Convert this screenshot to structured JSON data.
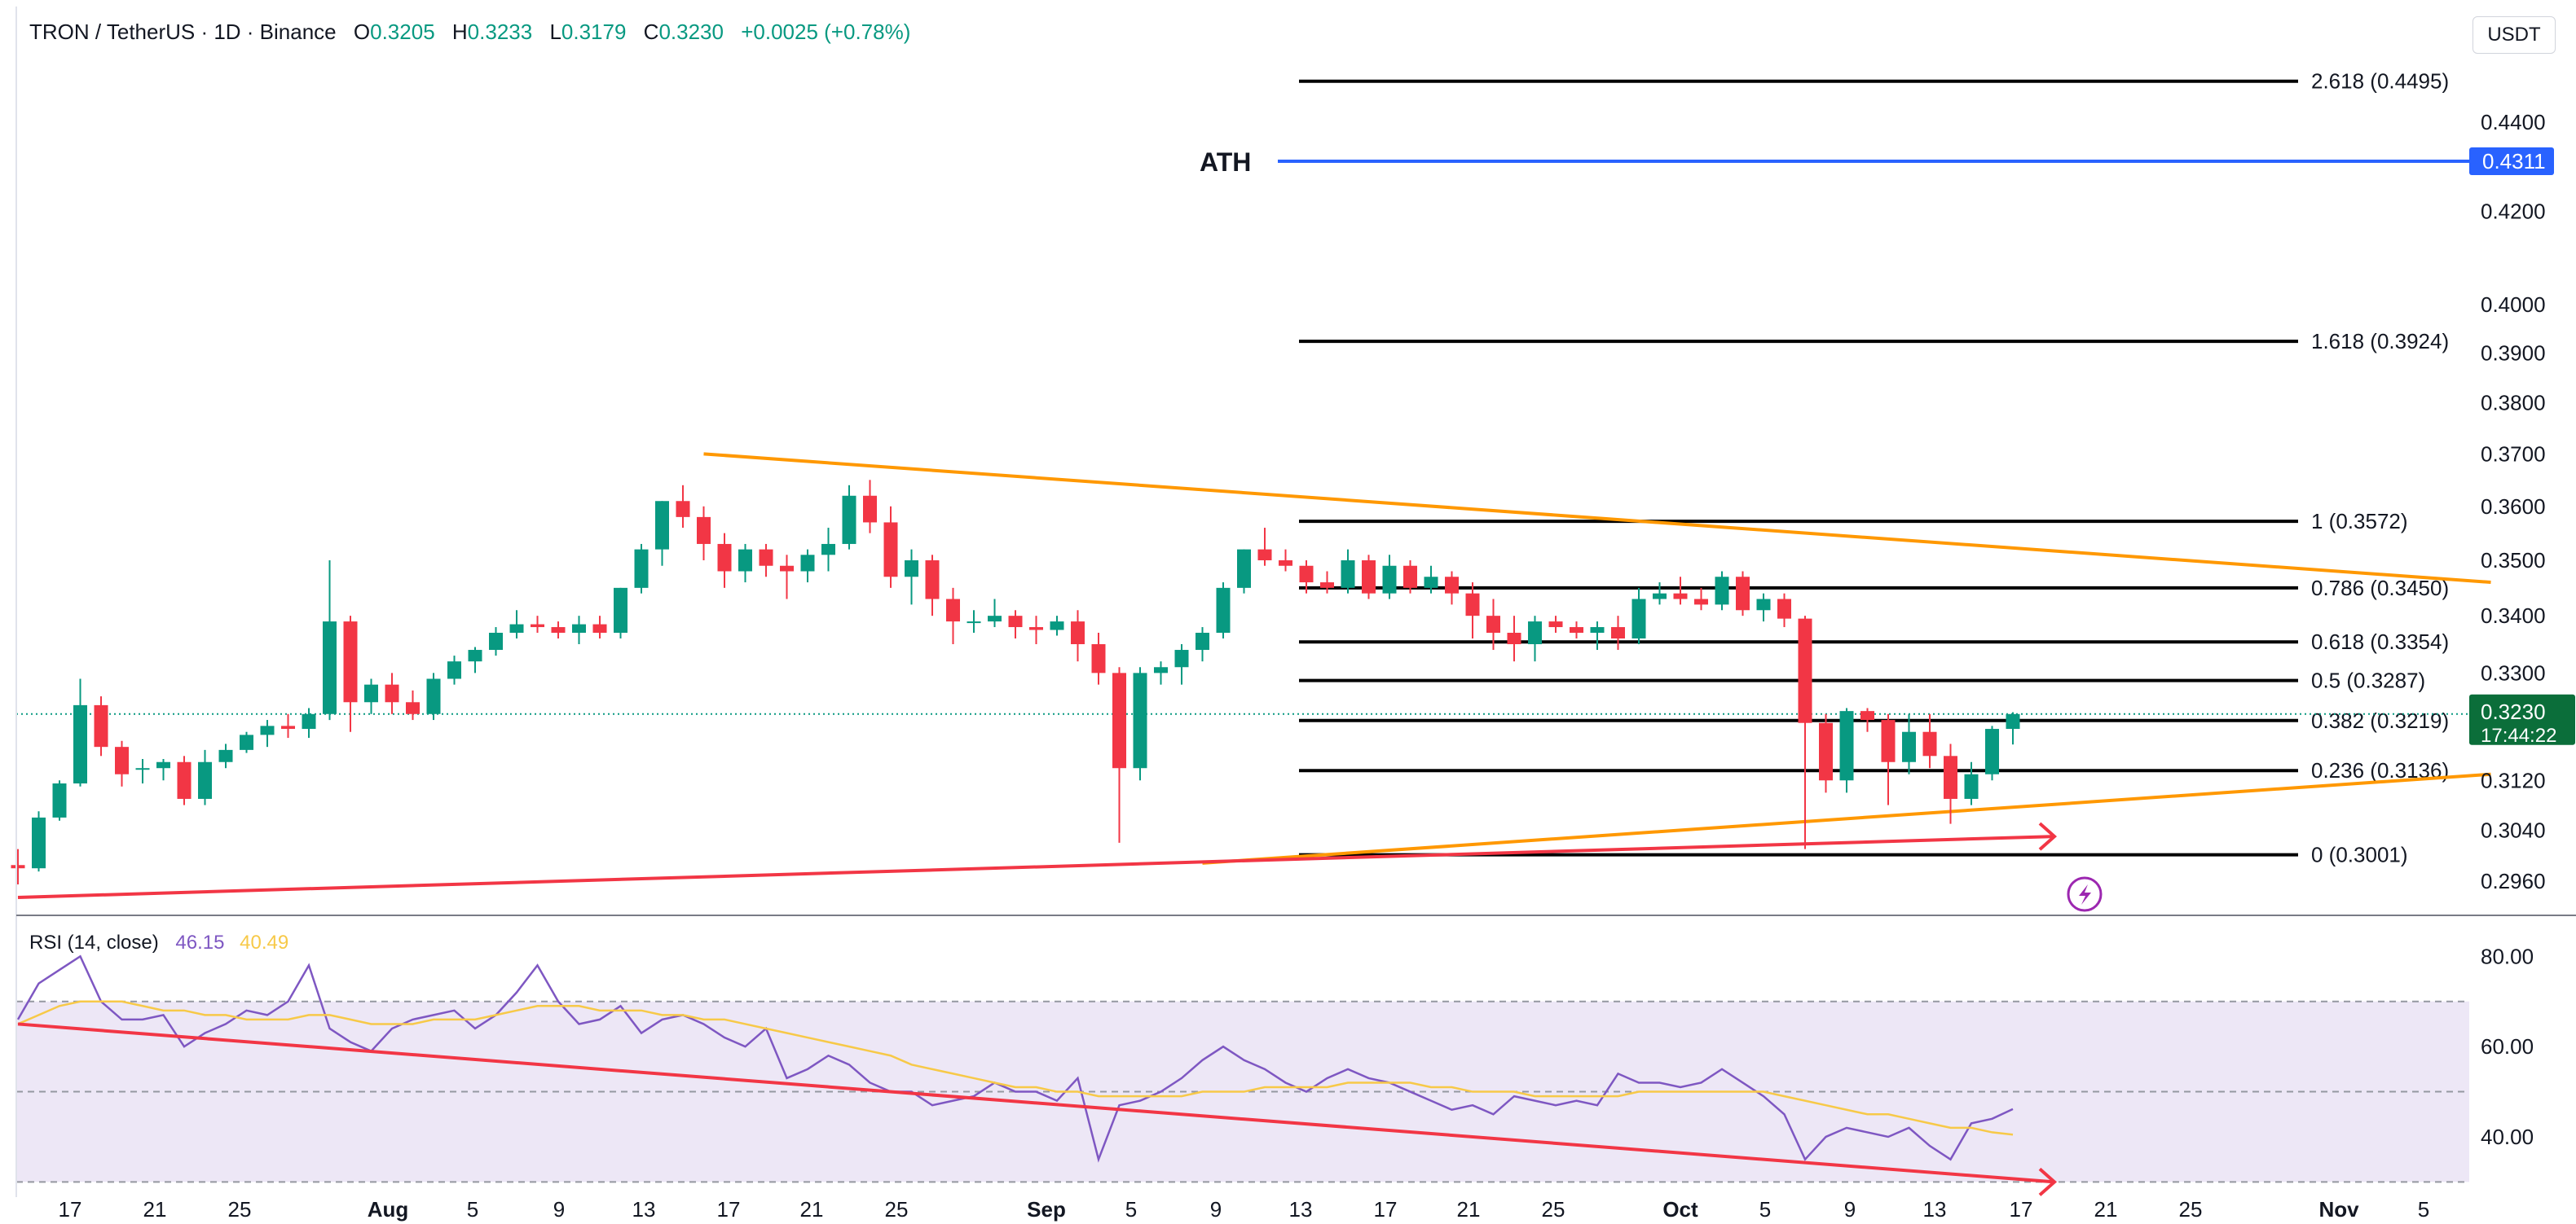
{
  "header": {
    "symbol": "TRON / TetherUS · 1D · Binance",
    "o_label": "O",
    "o_value": "0.3205",
    "h_label": "H",
    "h_value": "0.3233",
    "l_label": "L",
    "l_value": "0.3179",
    "c_label": "C",
    "c_value": "0.3230",
    "change": "+0.0025 (+0.78%)"
  },
  "unit_badge": "USDT",
  "colors": {
    "up": "#089981",
    "down": "#f23645",
    "fib_line": "#000000",
    "ath_line": "#2962ff",
    "trend_orange": "#ff9800",
    "trend_red": "#f23645",
    "rsi_line": "#7e57c2",
    "rsi_ma": "#f7c948",
    "rsi_band": "#ede7f6"
  },
  "chart_data": [
    {
      "type": "candlestick",
      "title": "TRON / TetherUS · 1D · Binance",
      "x_tick_labels": [
        "17",
        "21",
        "25",
        "Aug",
        "5",
        "9",
        "13",
        "17",
        "21",
        "25",
        "Sep",
        "5",
        "9",
        "13",
        "17",
        "21",
        "25",
        "Oct",
        "5",
        "9",
        "13",
        "17",
        "21",
        "25",
        "Nov",
        "5"
      ],
      "y_tick_labels": [
        "0.4400",
        "0.4200",
        "0.4000",
        "0.3900",
        "0.3800",
        "0.3700",
        "0.3600",
        "0.3500",
        "0.3400",
        "0.3300",
        "0.3120",
        "0.3040",
        "0.2960"
      ],
      "y_axis_scale": "log",
      "ylim": [
        0.2925,
        0.465
      ],
      "candles": [
        {
          "o": 0.2985,
          "h": 0.301,
          "l": 0.2955,
          "c": 0.298
        },
        {
          "o": 0.298,
          "h": 0.307,
          "l": 0.2975,
          "c": 0.306
        },
        {
          "o": 0.306,
          "h": 0.312,
          "l": 0.3055,
          "c": 0.3115
        },
        {
          "o": 0.3115,
          "h": 0.329,
          "l": 0.311,
          "c": 0.3245
        },
        {
          "o": 0.3245,
          "h": 0.326,
          "l": 0.316,
          "c": 0.3175
        },
        {
          "o": 0.3175,
          "h": 0.3185,
          "l": 0.311,
          "c": 0.313
        },
        {
          "o": 0.314,
          "h": 0.3155,
          "l": 0.3115,
          "c": 0.314
        },
        {
          "o": 0.314,
          "h": 0.3155,
          "l": 0.312,
          "c": 0.315
        },
        {
          "o": 0.315,
          "h": 0.316,
          "l": 0.308,
          "c": 0.309
        },
        {
          "o": 0.309,
          "h": 0.317,
          "l": 0.308,
          "c": 0.315
        },
        {
          "o": 0.315,
          "h": 0.318,
          "l": 0.314,
          "c": 0.317
        },
        {
          "o": 0.317,
          "h": 0.32,
          "l": 0.3165,
          "c": 0.3195
        },
        {
          "o": 0.3195,
          "h": 0.322,
          "l": 0.3175,
          "c": 0.321
        },
        {
          "o": 0.321,
          "h": 0.323,
          "l": 0.319,
          "c": 0.3205
        },
        {
          "o": 0.3205,
          "h": 0.324,
          "l": 0.319,
          "c": 0.323
        },
        {
          "o": 0.323,
          "h": 0.35,
          "l": 0.322,
          "c": 0.339
        },
        {
          "o": 0.339,
          "h": 0.34,
          "l": 0.32,
          "c": 0.325
        },
        {
          "o": 0.325,
          "h": 0.329,
          "l": 0.323,
          "c": 0.328
        },
        {
          "o": 0.328,
          "h": 0.33,
          "l": 0.323,
          "c": 0.325
        },
        {
          "o": 0.325,
          "h": 0.327,
          "l": 0.322,
          "c": 0.323
        },
        {
          "o": 0.323,
          "h": 0.33,
          "l": 0.322,
          "c": 0.329
        },
        {
          "o": 0.329,
          "h": 0.333,
          "l": 0.328,
          "c": 0.332
        },
        {
          "o": 0.332,
          "h": 0.3345,
          "l": 0.33,
          "c": 0.334
        },
        {
          "o": 0.334,
          "h": 0.338,
          "l": 0.333,
          "c": 0.337
        },
        {
          "o": 0.337,
          "h": 0.341,
          "l": 0.336,
          "c": 0.3385
        },
        {
          "o": 0.3385,
          "h": 0.34,
          "l": 0.337,
          "c": 0.338
        },
        {
          "o": 0.338,
          "h": 0.339,
          "l": 0.336,
          "c": 0.337
        },
        {
          "o": 0.337,
          "h": 0.34,
          "l": 0.335,
          "c": 0.3385
        },
        {
          "o": 0.3385,
          "h": 0.34,
          "l": 0.336,
          "c": 0.337
        },
        {
          "o": 0.337,
          "h": 0.345,
          "l": 0.336,
          "c": 0.345
        },
        {
          "o": 0.345,
          "h": 0.353,
          "l": 0.344,
          "c": 0.352
        },
        {
          "o": 0.352,
          "h": 0.361,
          "l": 0.349,
          "c": 0.361
        },
        {
          "o": 0.361,
          "h": 0.364,
          "l": 0.356,
          "c": 0.358
        },
        {
          "o": 0.358,
          "h": 0.36,
          "l": 0.35,
          "c": 0.353
        },
        {
          "o": 0.353,
          "h": 0.355,
          "l": 0.345,
          "c": 0.348
        },
        {
          "o": 0.348,
          "h": 0.353,
          "l": 0.346,
          "c": 0.352
        },
        {
          "o": 0.352,
          "h": 0.353,
          "l": 0.347,
          "c": 0.349
        },
        {
          "o": 0.349,
          "h": 0.351,
          "l": 0.343,
          "c": 0.348
        },
        {
          "o": 0.348,
          "h": 0.352,
          "l": 0.346,
          "c": 0.351
        },
        {
          "o": 0.351,
          "h": 0.356,
          "l": 0.348,
          "c": 0.353
        },
        {
          "o": 0.353,
          "h": 0.364,
          "l": 0.352,
          "c": 0.362
        },
        {
          "o": 0.362,
          "h": 0.365,
          "l": 0.355,
          "c": 0.357
        },
        {
          "o": 0.357,
          "h": 0.36,
          "l": 0.345,
          "c": 0.347
        },
        {
          "o": 0.347,
          "h": 0.352,
          "l": 0.342,
          "c": 0.35
        },
        {
          "o": 0.35,
          "h": 0.351,
          "l": 0.34,
          "c": 0.343
        },
        {
          "o": 0.343,
          "h": 0.345,
          "l": 0.335,
          "c": 0.339
        },
        {
          "o": 0.339,
          "h": 0.341,
          "l": 0.337,
          "c": 0.339
        },
        {
          "o": 0.339,
          "h": 0.343,
          "l": 0.338,
          "c": 0.34
        },
        {
          "o": 0.34,
          "h": 0.341,
          "l": 0.336,
          "c": 0.338
        },
        {
          "o": 0.338,
          "h": 0.34,
          "l": 0.335,
          "c": 0.3375
        },
        {
          "o": 0.3375,
          "h": 0.34,
          "l": 0.3365,
          "c": 0.339
        },
        {
          "o": 0.339,
          "h": 0.341,
          "l": 0.332,
          "c": 0.335
        },
        {
          "o": 0.335,
          "h": 0.337,
          "l": 0.328,
          "c": 0.33
        },
        {
          "o": 0.33,
          "h": 0.331,
          "l": 0.302,
          "c": 0.314
        },
        {
          "o": 0.314,
          "h": 0.331,
          "l": 0.312,
          "c": 0.33
        },
        {
          "o": 0.33,
          "h": 0.332,
          "l": 0.328,
          "c": 0.331
        },
        {
          "o": 0.331,
          "h": 0.335,
          "l": 0.328,
          "c": 0.334
        },
        {
          "o": 0.334,
          "h": 0.338,
          "l": 0.332,
          "c": 0.337
        },
        {
          "o": 0.337,
          "h": 0.346,
          "l": 0.336,
          "c": 0.345
        },
        {
          "o": 0.345,
          "h": 0.352,
          "l": 0.344,
          "c": 0.352
        },
        {
          "o": 0.352,
          "h": 0.356,
          "l": 0.349,
          "c": 0.35
        },
        {
          "o": 0.35,
          "h": 0.352,
          "l": 0.348,
          "c": 0.349
        },
        {
          "o": 0.349,
          "h": 0.35,
          "l": 0.344,
          "c": 0.346
        },
        {
          "o": 0.346,
          "h": 0.348,
          "l": 0.344,
          "c": 0.345
        },
        {
          "o": 0.345,
          "h": 0.352,
          "l": 0.344,
          "c": 0.35
        },
        {
          "o": 0.35,
          "h": 0.351,
          "l": 0.343,
          "c": 0.344
        },
        {
          "o": 0.344,
          "h": 0.351,
          "l": 0.343,
          "c": 0.349
        },
        {
          "o": 0.349,
          "h": 0.35,
          "l": 0.344,
          "c": 0.345
        },
        {
          "o": 0.345,
          "h": 0.349,
          "l": 0.344,
          "c": 0.347
        },
        {
          "o": 0.347,
          "h": 0.348,
          "l": 0.342,
          "c": 0.344
        },
        {
          "o": 0.344,
          "h": 0.346,
          "l": 0.336,
          "c": 0.34
        },
        {
          "o": 0.34,
          "h": 0.343,
          "l": 0.334,
          "c": 0.337
        },
        {
          "o": 0.337,
          "h": 0.34,
          "l": 0.332,
          "c": 0.335
        },
        {
          "o": 0.335,
          "h": 0.34,
          "l": 0.332,
          "c": 0.339
        },
        {
          "o": 0.339,
          "h": 0.34,
          "l": 0.337,
          "c": 0.338
        },
        {
          "o": 0.338,
          "h": 0.339,
          "l": 0.336,
          "c": 0.337
        },
        {
          "o": 0.337,
          "h": 0.339,
          "l": 0.334,
          "c": 0.338
        },
        {
          "o": 0.338,
          "h": 0.34,
          "l": 0.334,
          "c": 0.336
        },
        {
          "o": 0.336,
          "h": 0.345,
          "l": 0.335,
          "c": 0.343
        },
        {
          "o": 0.343,
          "h": 0.346,
          "l": 0.342,
          "c": 0.344
        },
        {
          "o": 0.344,
          "h": 0.347,
          "l": 0.342,
          "c": 0.343
        },
        {
          "o": 0.343,
          "h": 0.345,
          "l": 0.341,
          "c": 0.342
        },
        {
          "o": 0.342,
          "h": 0.348,
          "l": 0.341,
          "c": 0.347
        },
        {
          "o": 0.347,
          "h": 0.348,
          "l": 0.34,
          "c": 0.341
        },
        {
          "o": 0.341,
          "h": 0.344,
          "l": 0.339,
          "c": 0.343
        },
        {
          "o": 0.343,
          "h": 0.344,
          "l": 0.338,
          "c": 0.3395
        },
        {
          "o": 0.3395,
          "h": 0.34,
          "l": 0.301,
          "c": 0.3215
        },
        {
          "o": 0.3215,
          "h": 0.323,
          "l": 0.31,
          "c": 0.312
        },
        {
          "o": 0.312,
          "h": 0.324,
          "l": 0.31,
          "c": 0.3235
        },
        {
          "o": 0.3235,
          "h": 0.324,
          "l": 0.32,
          "c": 0.322
        },
        {
          "o": 0.322,
          "h": 0.323,
          "l": 0.308,
          "c": 0.315
        },
        {
          "o": 0.315,
          "h": 0.323,
          "l": 0.313,
          "c": 0.32
        },
        {
          "o": 0.32,
          "h": 0.323,
          "l": 0.314,
          "c": 0.316
        },
        {
          "o": 0.316,
          "h": 0.318,
          "l": 0.305,
          "c": 0.309
        },
        {
          "o": 0.309,
          "h": 0.315,
          "l": 0.308,
          "c": 0.313
        },
        {
          "o": 0.313,
          "h": 0.321,
          "l": 0.312,
          "c": 0.3205
        },
        {
          "o": 0.3205,
          "h": 0.3233,
          "l": 0.3179,
          "c": 0.323
        }
      ],
      "fib_levels": [
        {
          "label": "2.618 (0.4495)",
          "value": 0.4495
        },
        {
          "label": "1.618 (0.3924)",
          "value": 0.3924
        },
        {
          "label": "1 (0.3572)",
          "value": 0.3572
        },
        {
          "label": "0.786 (0.3450)",
          "value": 0.345
        },
        {
          "label": "0.618 (0.3354)",
          "value": 0.3354
        },
        {
          "label": "0.5 (0.3287)",
          "value": 0.3287
        },
        {
          "label": "0.382 (0.3219)",
          "value": 0.3219
        },
        {
          "label": "0.236 (0.3136)",
          "value": 0.3136
        },
        {
          "label": "0 (0.3001)",
          "value": 0.3001
        }
      ],
      "ath": {
        "label": "ATH",
        "value": 0.4311,
        "badge": "0.4311"
      },
      "last_price": {
        "value": 0.323,
        "label": "0.3230",
        "countdown": "17:44:22"
      },
      "trendlines": [
        {
          "color": "orange",
          "from": {
            "x_index": 33,
            "y": 0.37
          },
          "to": {
            "x_index": 119,
            "y": 0.346
          }
        },
        {
          "color": "orange",
          "from": {
            "x_index": 57,
            "y": 0.2988
          },
          "to": {
            "x_index": 119,
            "y": 0.313
          }
        },
        {
          "color": "red",
          "from": {
            "x_index": 0,
            "y": 0.2935
          },
          "to": {
            "x_index": 98,
            "y": 0.303
          }
        }
      ]
    },
    {
      "type": "line",
      "title": "RSI (14, close)",
      "series": [
        {
          "name": "RSI",
          "value_label": "46.15",
          "values": [
            66,
            74,
            77,
            80,
            70,
            66,
            66,
            67,
            60,
            63,
            65,
            68,
            67,
            70,
            78,
            64,
            61,
            59,
            64,
            66,
            67,
            68,
            64,
            67,
            72,
            78,
            70,
            65,
            66,
            69,
            63,
            66,
            67,
            65,
            62,
            60,
            64,
            53,
            55,
            58,
            56,
            52,
            50,
            50,
            47,
            48,
            49,
            52,
            50,
            50,
            48,
            53,
            35,
            47,
            48,
            50,
            53,
            57,
            60,
            57,
            55,
            52,
            50,
            53,
            55,
            53,
            52,
            50,
            48,
            46,
            47,
            45,
            49,
            48,
            47,
            48,
            47,
            54,
            52,
            52,
            51,
            52,
            55,
            52,
            49,
            45,
            35,
            40,
            42,
            41,
            40,
            42,
            38,
            35,
            43,
            44,
            46.15
          ]
        },
        {
          "name": "RSI-based MA",
          "value_label": "40.49",
          "values": [
            65,
            67,
            69,
            70,
            70,
            70,
            69,
            68,
            68,
            67,
            67,
            66,
            66,
            66,
            67,
            67,
            66,
            65,
            65,
            65,
            66,
            66,
            66,
            67,
            68,
            69,
            69,
            69,
            68,
            68,
            68,
            67,
            67,
            66,
            66,
            65,
            64,
            63,
            62,
            61,
            60,
            59,
            58,
            56,
            55,
            54,
            53,
            52,
            51,
            51,
            50,
            50,
            49,
            49,
            49,
            49,
            49,
            50,
            50,
            50,
            51,
            51,
            51,
            51,
            52,
            52,
            52,
            52,
            51,
            51,
            50,
            50,
            50,
            49,
            49,
            49,
            49,
            49,
            50,
            50,
            50,
            50,
            50,
            50,
            50,
            49,
            48,
            47,
            46,
            45,
            45,
            44,
            43,
            42,
            42,
            41,
            40.49
          ]
        }
      ],
      "y_tick_labels": [
        "80.00",
        "60.00",
        "40.00"
      ],
      "ylim": [
        27,
        88
      ],
      "bands": {
        "upper": 70,
        "middle": 50,
        "lower": 30
      },
      "trendline": {
        "from": {
          "x_index": 0,
          "y": 65
        },
        "to": {
          "x_index": 98,
          "y": 30
        }
      }
    }
  ]
}
